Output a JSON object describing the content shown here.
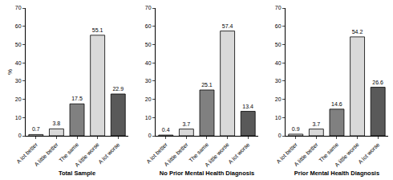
{
  "chart_data": [
    {
      "type": "bar",
      "xlabel": "Total Sample",
      "ylabel": "%",
      "categories": [
        "A lot better",
        "A little better",
        "The same",
        "A little worse",
        "A lot worse"
      ],
      "values": [
        0.7,
        3.8,
        17.5,
        55.1,
        22.9
      ],
      "colors": [
        "#d9d9d9",
        "#d9d9d9",
        "#808080",
        "#d9d9d9",
        "#595959"
      ],
      "ylim": [
        0,
        70
      ],
      "yticks": [
        0,
        10,
        20,
        30,
        40,
        50,
        60,
        70
      ],
      "grid": false,
      "data_labels": true
    },
    {
      "type": "bar",
      "xlabel": "No Prior Mental Health Diagnosis",
      "categories": [
        "A lot better",
        "A little better",
        "The same",
        "A little worse",
        "A lot worse"
      ],
      "values": [
        0.4,
        3.7,
        25.1,
        57.4,
        13.4
      ],
      "colors": [
        "#d9d9d9",
        "#d9d9d9",
        "#808080",
        "#d9d9d9",
        "#595959"
      ],
      "ylim": [
        0,
        70
      ],
      "yticks": [
        0,
        10,
        20,
        30,
        40,
        50,
        60,
        70
      ],
      "grid": false,
      "data_labels": true
    },
    {
      "type": "bar",
      "xlabel": "Prior Mental Health Diagnosis",
      "categories": [
        "A lot better",
        "A little better",
        "The same",
        "A little worse",
        "A lot worse"
      ],
      "values": [
        0.9,
        3.7,
        14.6,
        54.2,
        26.6
      ],
      "colors": [
        "#d9d9d9",
        "#d9d9d9",
        "#808080",
        "#d9d9d9",
        "#595959"
      ],
      "ylim": [
        0,
        70
      ],
      "yticks": [
        0,
        10,
        20,
        30,
        40,
        50,
        60,
        70
      ],
      "grid": false,
      "data_labels": true
    }
  ]
}
